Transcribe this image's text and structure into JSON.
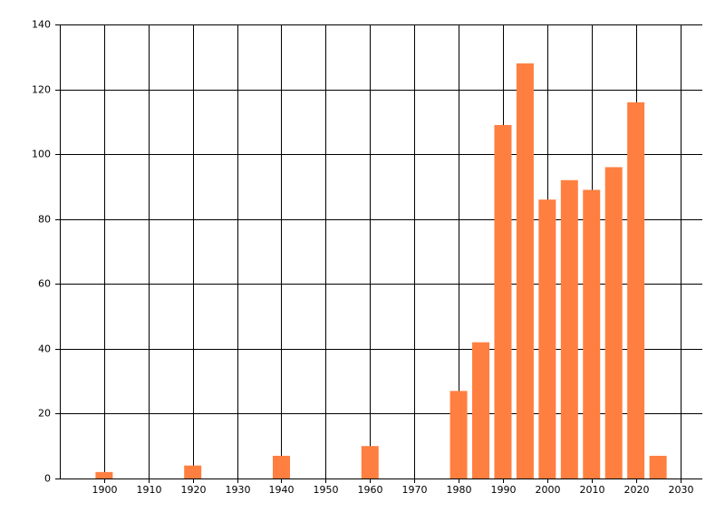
{
  "chart_data": {
    "type": "bar",
    "x": [
      1900,
      1920,
      1940,
      1960,
      1980,
      1985,
      1990,
      1995,
      2000,
      2005,
      2010,
      2015,
      2020,
      2025
    ],
    "values": [
      2,
      4,
      7,
      10,
      27,
      42,
      109,
      128,
      86,
      92,
      89,
      96,
      116,
      7
    ],
    "color": "#ff7f40",
    "xlim": [
      1890,
      2035
    ],
    "xticks": [
      1900,
      1910,
      1920,
      1930,
      1940,
      1950,
      1960,
      1970,
      1980,
      1990,
      2000,
      2010,
      2020,
      2030
    ],
    "ylim": [
      0,
      140
    ],
    "yticks": [
      0,
      20,
      40,
      60,
      80,
      100,
      120,
      140
    ],
    "grid": true
  }
}
